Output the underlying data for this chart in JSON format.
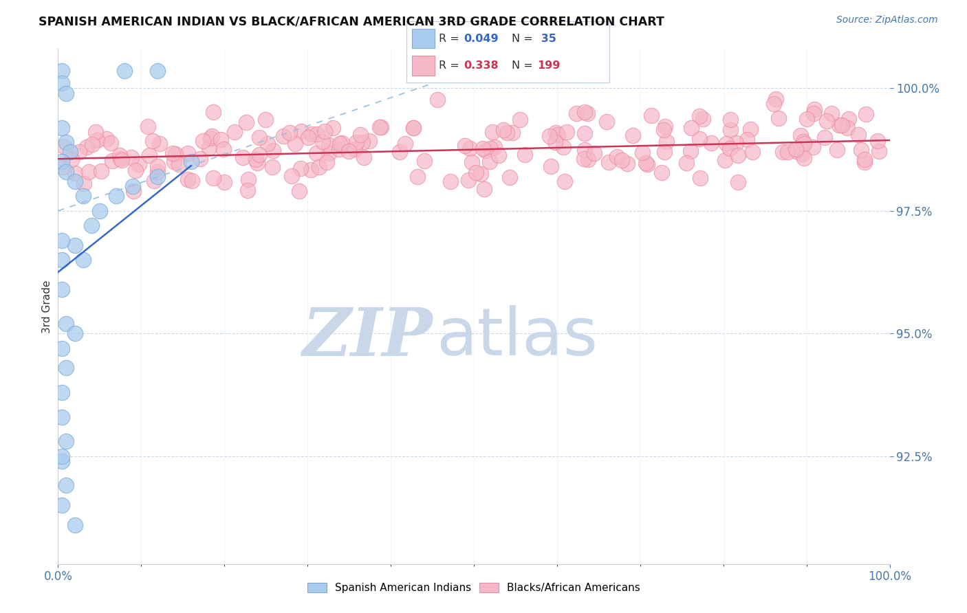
{
  "title": "SPANISH AMERICAN INDIAN VS BLACK/AFRICAN AMERICAN 3RD GRADE CORRELATION CHART",
  "source": "Source: ZipAtlas.com",
  "ylabel": "3rd Grade",
  "xlim": [
    0.0,
    1.0
  ],
  "ylim": [
    90.3,
    100.8
  ],
  "yticks": [
    92.5,
    95.0,
    97.5,
    100.0
  ],
  "ytick_labels": [
    "92.5%",
    "95.0%",
    "97.5%",
    "100.0%"
  ],
  "blue_marker_fc": "#A8CCEE",
  "blue_marker_ec": "#7AAAD4",
  "pink_marker_fc": "#F5B8C8",
  "pink_marker_ec": "#EE8AA0",
  "blue_line_color": "#3366CC",
  "pink_line_color": "#CC3355",
  "dashed_line_color": "#A0C0E0",
  "tick_color": "#4477AA",
  "grid_color": "#C8D8E8",
  "label_color": "#333333",
  "watermark_zip_color": "#C8D8E8",
  "watermark_atlas_color": "#C8D8E8",
  "legend_text_color_blue": "#3366CC",
  "legend_text_color_pink": "#CC3355",
  "legend_border_color": "#BBCCDD"
}
